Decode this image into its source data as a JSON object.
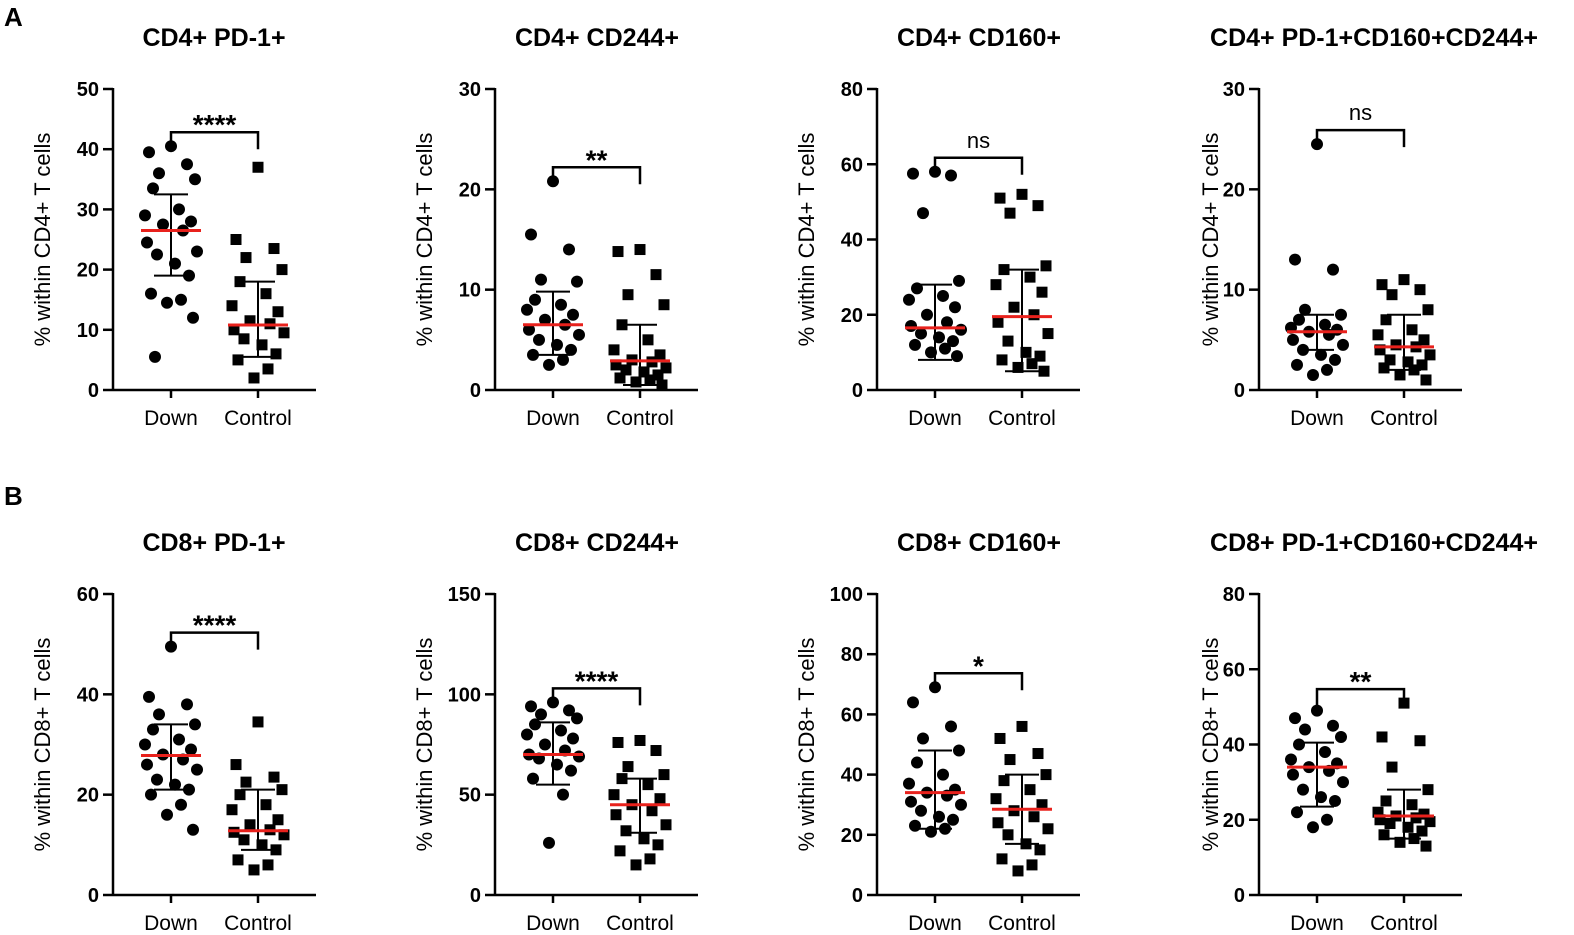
{
  "panel_labels": [
    "A",
    "B"
  ],
  "colors": {
    "median": "#e8211c",
    "points": "#000000",
    "axis": "#000000"
  },
  "chart_data": [
    {
      "type": "scatter",
      "row": 0,
      "col": 0,
      "title": "CD4+ PD-1+",
      "ylabel": "% within CD4+ T cells",
      "ylim": [
        0,
        50
      ],
      "ticks": [
        0,
        10,
        20,
        30,
        40,
        50
      ],
      "categories": [
        "Down",
        "Control"
      ],
      "significance": "****",
      "series": [
        {
          "name": "Down",
          "marker": "circle",
          "median": 26.5,
          "sd_low": 19,
          "sd_high": 32.5,
          "values": [
            40.5,
            39.5,
            37.5,
            36,
            35,
            33.5,
            30,
            29,
            28,
            27.5,
            26.5,
            24.5,
            23,
            22.5,
            21,
            19,
            16,
            15,
            14.5,
            12,
            5.5
          ]
        },
        {
          "name": "Control",
          "marker": "square",
          "median": 10.8,
          "sd_low": 5.5,
          "sd_high": 18,
          "values": [
            37,
            25,
            23.5,
            22,
            20,
            18,
            16,
            14,
            13,
            11.5,
            11,
            10,
            9.5,
            8.5,
            7.5,
            6,
            5,
            3.5,
            2
          ]
        }
      ]
    },
    {
      "type": "scatter",
      "row": 0,
      "col": 1,
      "title": "CD4+ CD244+",
      "ylabel": "% within CD4+ T cells",
      "ylim": [
        0,
        30
      ],
      "ticks": [
        0,
        10,
        20,
        30
      ],
      "categories": [
        "Down",
        "Control"
      ],
      "significance": "**",
      "series": [
        {
          "name": "Down",
          "marker": "circle",
          "median": 6.5,
          "sd_low": 3.5,
          "sd_high": 9.8,
          "values": [
            20.8,
            15.5,
            14,
            11,
            10.8,
            9,
            8.5,
            8,
            7.5,
            7,
            6.5,
            6,
            5.5,
            5,
            4.5,
            4,
            3.5,
            3,
            2.5
          ]
        },
        {
          "name": "Control",
          "marker": "square",
          "median": 2.9,
          "sd_low": 0.5,
          "sd_high": 6.5,
          "values": [
            14,
            13.8,
            11.5,
            9.5,
            8.5,
            6.5,
            5,
            4,
            3.5,
            3,
            2.8,
            2.5,
            2.2,
            2,
            1.8,
            1.5,
            1.2,
            1,
            0.8,
            0.5
          ]
        }
      ]
    },
    {
      "type": "scatter",
      "row": 0,
      "col": 2,
      "title": "CD4+ CD160+",
      "ylabel": "% within CD4+ T cells",
      "ylim": [
        0,
        80
      ],
      "ticks": [
        0,
        20,
        40,
        60,
        80
      ],
      "categories": [
        "Down",
        "Control"
      ],
      "significance": "ns",
      "series": [
        {
          "name": "Down",
          "marker": "circle",
          "median": 16.5,
          "sd_low": 8,
          "sd_high": 28,
          "values": [
            58,
            57.5,
            57,
            47,
            29,
            27,
            25,
            24,
            22,
            20,
            18,
            17,
            16,
            15,
            14,
            13,
            12,
            11,
            10,
            9
          ]
        },
        {
          "name": "Control",
          "marker": "square",
          "median": 19.5,
          "sd_low": 5,
          "sd_high": 32,
          "values": [
            52,
            51,
            49,
            47,
            33,
            32,
            30,
            28,
            26,
            22,
            20,
            18,
            15,
            13,
            10,
            9,
            8,
            7,
            6,
            5
          ]
        }
      ]
    },
    {
      "type": "scatter",
      "row": 0,
      "col": 3,
      "title": "CD4+ PD-1+CD160+CD244+",
      "ylabel": "% within CD4+ T cells",
      "ylim": [
        0,
        30
      ],
      "ticks": [
        0,
        10,
        20,
        30
      ],
      "categories": [
        "Down",
        "Control"
      ],
      "significance": "ns",
      "series": [
        {
          "name": "Down",
          "marker": "circle",
          "median": 5.8,
          "sd_low": 4,
          "sd_high": 7.5,
          "values": [
            24.5,
            13,
            12,
            8,
            7.5,
            7,
            6.5,
            6.2,
            6,
            5.8,
            5.5,
            5,
            4.5,
            4,
            3.5,
            3,
            2.5,
            2,
            1.5
          ]
        },
        {
          "name": "Control",
          "marker": "square",
          "median": 4.3,
          "sd_low": 2,
          "sd_high": 7.5,
          "values": [
            11,
            10.5,
            10,
            9.5,
            8,
            7,
            6,
            5.5,
            5,
            4.5,
            4.3,
            4,
            3.5,
            3,
            2.8,
            2.5,
            2.2,
            2,
            1.5,
            1
          ]
        }
      ]
    },
    {
      "type": "scatter",
      "row": 1,
      "col": 0,
      "title": "CD8+ PD-1+",
      "ylabel": "% within CD8+ T cells",
      "ylim": [
        0,
        60
      ],
      "ticks": [
        0,
        20,
        40,
        60
      ],
      "categories": [
        "Down",
        "Control"
      ],
      "significance": "****",
      "series": [
        {
          "name": "Down",
          "marker": "circle",
          "median": 27.8,
          "sd_low": 21,
          "sd_high": 34,
          "values": [
            49.5,
            39.5,
            38,
            36,
            34,
            33,
            31,
            30,
            29,
            28,
            27,
            26,
            25,
            23,
            22,
            21,
            20,
            18,
            16,
            13
          ]
        },
        {
          "name": "Control",
          "marker": "square",
          "median": 12.8,
          "sd_low": 9,
          "sd_high": 21,
          "values": [
            34.5,
            26,
            23.5,
            22.5,
            21,
            20,
            18,
            17,
            15,
            14,
            13,
            12.5,
            12,
            11,
            10,
            9,
            7,
            6,
            5
          ]
        }
      ]
    },
    {
      "type": "scatter",
      "row": 1,
      "col": 1,
      "title": "CD8+ CD244+",
      "ylabel": "% within CD8+ T cells",
      "ylim": [
        0,
        150
      ],
      "ticks": [
        0,
        50,
        100,
        150
      ],
      "categories": [
        "Down",
        "Control"
      ],
      "significance": "****",
      "series": [
        {
          "name": "Down",
          "marker": "circle",
          "median": 70,
          "sd_low": 55,
          "sd_high": 86,
          "values": [
            96,
            94,
            92,
            90,
            88,
            85,
            82,
            80,
            78,
            75,
            72,
            70,
            69,
            68,
            65,
            62,
            58,
            50,
            26
          ]
        },
        {
          "name": "Control",
          "marker": "square",
          "median": 45,
          "sd_low": 31,
          "sd_high": 58,
          "values": [
            77,
            76,
            72,
            64,
            60,
            58,
            55,
            50,
            48,
            45,
            42,
            40,
            35,
            32,
            28,
            25,
            22,
            18,
            15
          ]
        }
      ]
    },
    {
      "type": "scatter",
      "row": 1,
      "col": 2,
      "title": "CD8+ CD160+",
      "ylabel": "% within CD8+ T cells",
      "ylim": [
        0,
        100
      ],
      "ticks": [
        0,
        20,
        40,
        60,
        80,
        100
      ],
      "categories": [
        "Down",
        "Control"
      ],
      "significance": "*",
      "series": [
        {
          "name": "Down",
          "marker": "circle",
          "median": 34,
          "sd_low": 22,
          "sd_high": 48,
          "values": [
            69,
            64,
            56,
            52,
            48,
            44,
            40,
            37,
            35,
            34,
            33,
            31,
            30,
            28,
            26,
            25,
            23,
            22,
            21
          ]
        },
        {
          "name": "Control",
          "marker": "square",
          "median": 28.5,
          "sd_low": 17,
          "sd_high": 40,
          "values": [
            56,
            52,
            47,
            45,
            40,
            38,
            35,
            32,
            30,
            28,
            26,
            24,
            22,
            20,
            17,
            15,
            12,
            10,
            8
          ]
        }
      ]
    },
    {
      "type": "scatter",
      "row": 1,
      "col": 3,
      "title": "CD8+ PD-1+CD160+CD244+",
      "ylabel": "% within CD8+ T cells",
      "ylim": [
        0,
        80
      ],
      "ticks": [
        0,
        20,
        40,
        60,
        80
      ],
      "categories": [
        "Down",
        "Control"
      ],
      "significance": "**",
      "series": [
        {
          "name": "Down",
          "marker": "circle",
          "median": 34,
          "sd_low": 23.5,
          "sd_high": 40.5,
          "values": [
            49,
            47,
            45,
            44,
            42,
            40,
            38,
            36,
            35,
            34,
            33,
            32,
            30,
            28,
            26,
            25,
            22,
            20,
            18
          ]
        },
        {
          "name": "Control",
          "marker": "square",
          "median": 21,
          "sd_low": 15,
          "sd_high": 28,
          "values": [
            51,
            42,
            41,
            34,
            28,
            25,
            24,
            22,
            21.5,
            21,
            20.5,
            20,
            19.5,
            19,
            18,
            17,
            16,
            15,
            14,
            13
          ]
        }
      ]
    }
  ]
}
